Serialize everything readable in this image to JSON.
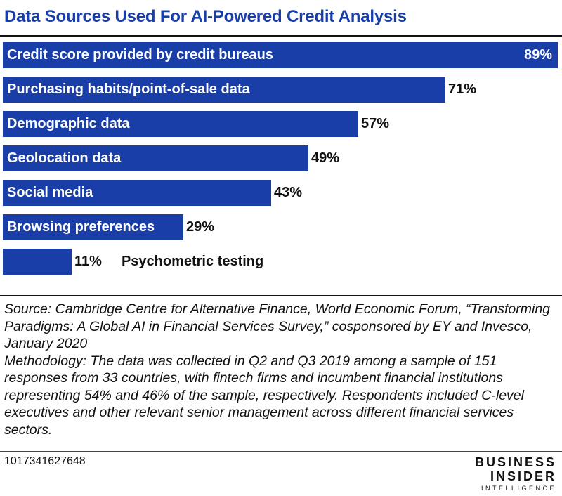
{
  "chart_data": {
    "type": "bar",
    "orientation": "horizontal",
    "title": "Data Sources Used For AI-Powered Credit Analysis",
    "categories": [
      "Credit score provided by credit bureaus",
      "Purchasing habits/point-of-sale data",
      "Demographic data",
      "Geolocation data",
      "Social media",
      "Browsing preferences",
      "Psychometric testing"
    ],
    "values": [
      89,
      71,
      57,
      49,
      43,
      29,
      11
    ],
    "value_suffix": "%",
    "xlim": [
      0,
      89
    ],
    "grid": false,
    "bar_color": "#1a3ea8"
  },
  "footer": {
    "source": "Source: Cambridge Centre for Alternative Finance, World Economic Forum, “Transforming Paradigms: A Global AI in Financial Services Survey,” cosponsored by EY and Invesco, January 2020",
    "methodology": "Methodology: The data was collected in Q2 and Q3 2019 among a sample of 151 responses from 33 countries, with fintech firms and incumbent financial institutions representing 54% and 46% of the sample, respectively. Respondents included C-level executives and other relevant senior management across different financial services sectors.",
    "chart_id": "1017341627648",
    "brand_line1": "BUSINESS",
    "brand_line2": "INSIDER",
    "brand_line3": "INTELLIGENCE"
  }
}
